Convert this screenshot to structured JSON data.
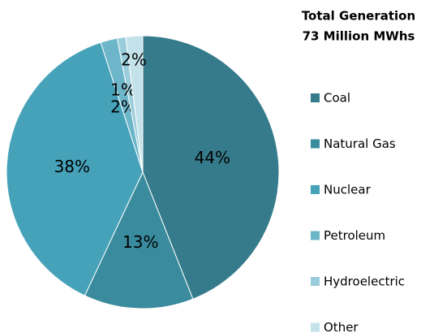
{
  "chart_data": {
    "type": "pie",
    "title": "Total Generation",
    "subtitle": "73 Million MWhs",
    "categories": [
      "Coal",
      "Natural Gas",
      "Nuclear",
      "Petroleum",
      "Hydroelectric",
      "Other"
    ],
    "values": [
      44,
      13,
      38,
      2,
      1,
      2
    ],
    "value_labels": [
      "44%",
      "13%",
      "38%",
      "2%",
      "1%",
      "2%"
    ],
    "colors": [
      "#367b8b",
      "#3a8b9e",
      "#46a2b9",
      "#6db6c9",
      "#9acddb",
      "#c4e2ea"
    ],
    "legend": "right"
  }
}
